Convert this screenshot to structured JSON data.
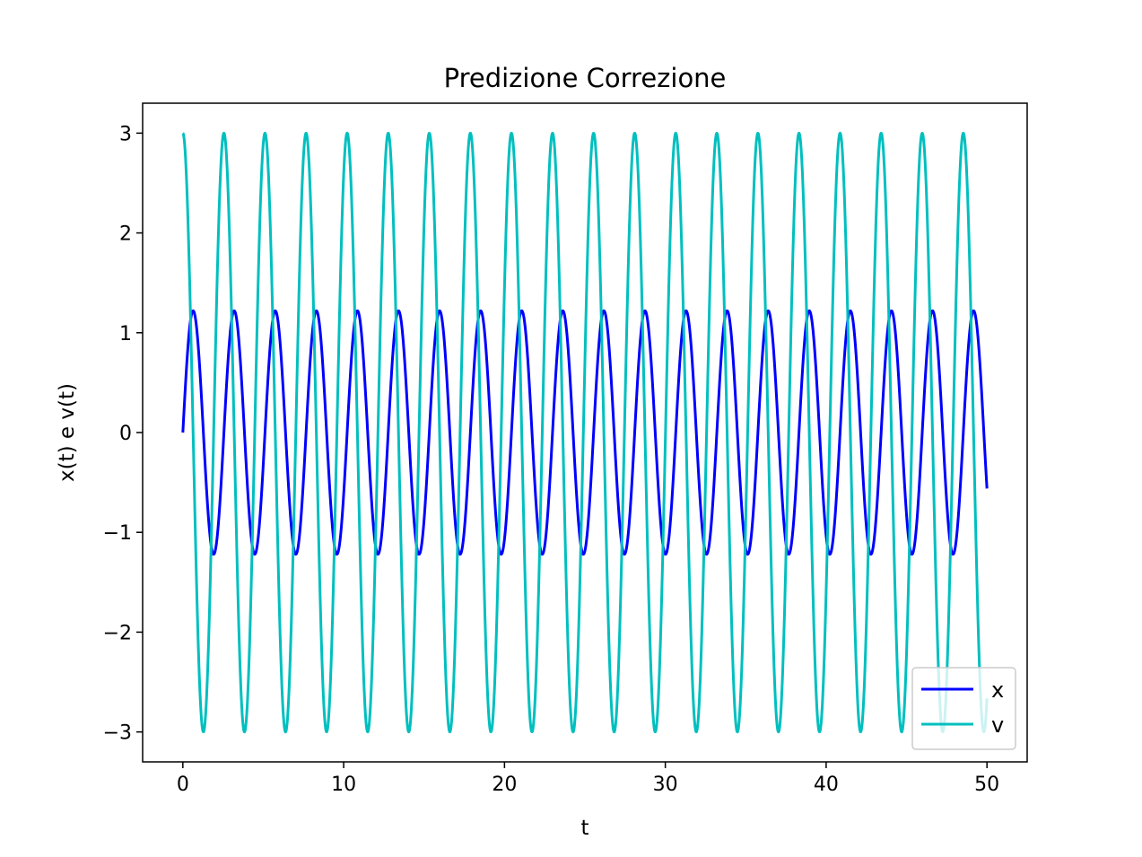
{
  "chart_data": {
    "type": "line",
    "title": "Predizione Correzione",
    "xlabel": "t",
    "ylabel": "x(t) e v(t)",
    "xlim": [
      -2.5,
      52.5
    ],
    "ylim": [
      -3.3,
      3.3
    ],
    "grid": false,
    "legend_position": "bottom-right",
    "x_ticks": [
      0,
      10,
      20,
      30,
      40,
      50
    ],
    "x_tick_labels": [
      "0",
      "10",
      "20",
      "30",
      "40",
      "50"
    ],
    "y_ticks": [
      -3,
      -2,
      -1,
      0,
      1,
      2,
      3
    ],
    "y_tick_labels": [
      "−3",
      "−2",
      "−1",
      "0",
      "1",
      "2",
      "3"
    ],
    "x_range": [
      0,
      50
    ],
    "series": [
      {
        "name": "x",
        "color": "#0000ff",
        "curve": "x(t) = A·sin(ω·t)",
        "amplitude": 1.22,
        "omega": 2.46,
        "phase": 0
      },
      {
        "name": "v",
        "color": "#00bfbf",
        "curve": "v(t) = A·cos(ω·t)",
        "amplitude": 3.0,
        "omega": 2.46,
        "phase": 1.5708
      }
    ]
  }
}
